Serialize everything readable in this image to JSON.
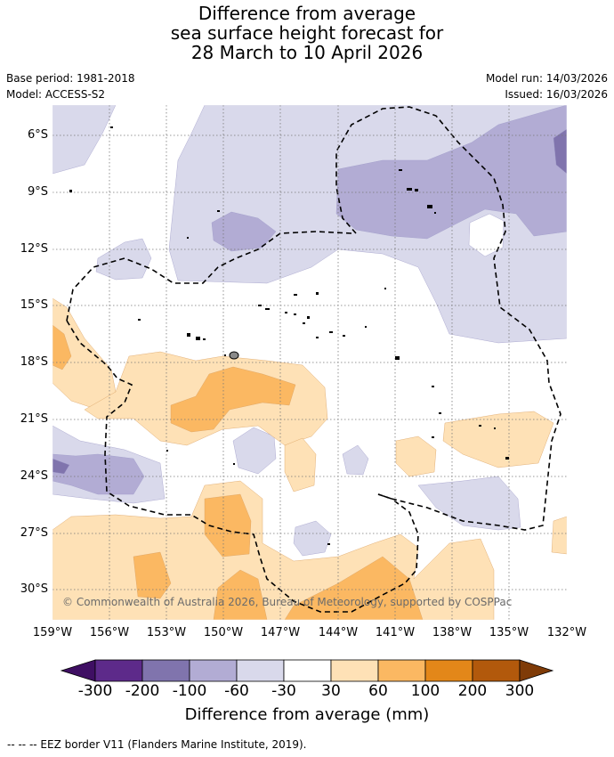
{
  "title": {
    "line1": "Difference from average",
    "line2": "sea surface height forecast for",
    "line3": "28 March to 10 April 2026"
  },
  "meta": {
    "base_period": "Base period: 1981-2018",
    "model": "Model: ACCESS-S2",
    "model_run": "Model run: 14/03/2026",
    "issued": "Issued: 16/03/2026"
  },
  "map": {
    "lat_labels": [
      "6°S",
      "9°S",
      "12°S",
      "15°S",
      "18°S",
      "21°S",
      "24°S",
      "27°S",
      "30°S"
    ],
    "lon_labels": [
      "159°W",
      "156°W",
      "153°W",
      "150°W",
      "147°W",
      "144°W",
      "141°W",
      "138°W",
      "135°W",
      "132°W"
    ],
    "copyright": "© Commonwealth of Australia 2026, Bureau of Meteorology, supported by COSPPac"
  },
  "colorbar": {
    "ticks": [
      "-300",
      "-200",
      "-100",
      "-60",
      "-30",
      "30",
      "60",
      "100",
      "200",
      "300"
    ],
    "colors": [
      "#3f0f63",
      "#5d2a8a",
      "#8074ad",
      "#b2acd4",
      "#d9d9eb",
      "#ffffff",
      "#fee1b6",
      "#fbb862",
      "#e38719",
      "#b2590c",
      "#7f3b07"
    ],
    "label": "Difference from average (mm)"
  },
  "legend": {
    "text": "-- -- -- EEZ border V11 (Flanders Marine Institute, 2019)."
  }
}
